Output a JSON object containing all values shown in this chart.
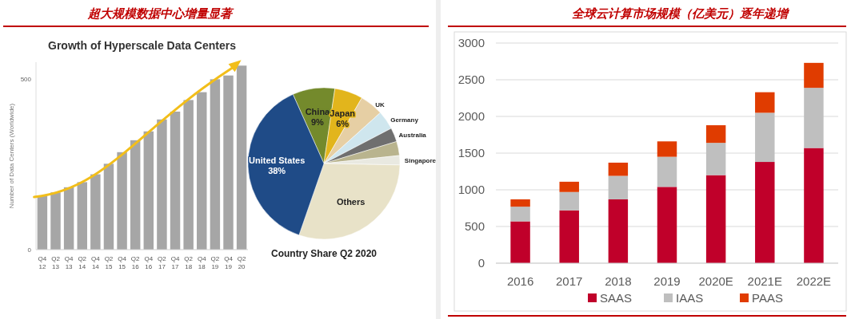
{
  "chart_data": [
    {
      "type": "bar",
      "title": "超大规模数据中心增量显著",
      "subtitle": "Growth of Hyperscale Data Centers",
      "ylabel": "Number of Data Centers (Worldwide)",
      "categories": [
        "Q4 12",
        "Q2 13",
        "Q4 13",
        "Q2 14",
        "Q4 14",
        "Q2 15",
        "Q4 15",
        "Q2 16",
        "Q4 16",
        "Q2 17",
        "Q4 17",
        "Q2 18",
        "Q4 18",
        "Q2 19",
        "Q4 19",
        "Q2 20"
      ],
      "values": [
        159,
        168,
        183,
        198,
        221,
        252,
        286,
        321,
        347,
        382,
        405,
        439,
        462,
        500,
        511,
        540
      ],
      "color": "#a6a6a6",
      "ylim": [
        0,
        550
      ],
      "yticks": [
        0,
        500
      ]
    },
    {
      "type": "pie",
      "title": "Country Share Q2 2020",
      "categories": [
        "China",
        "Japan",
        "UK",
        "Germany",
        "Australia",
        null,
        "Singapore",
        "Others",
        "United States"
      ],
      "values": [
        9,
        6,
        5,
        4,
        3,
        3,
        2,
        30,
        38
      ],
      "colors": [
        "#748a2c",
        "#e2b51c",
        "#e6cfa4",
        "#cfe6ee",
        "#6f6f6f",
        "#b9b48e",
        "#e9e9e1",
        "#e8e2c8",
        "#1f4b87"
      ],
      "value_labels": [
        "9%",
        "6%",
        null,
        null,
        null,
        null,
        null,
        null,
        "38%"
      ]
    },
    {
      "type": "bar",
      "title": "全球云计算市场规模（亿美元）逐年递增",
      "stacked": true,
      "categories": [
        "2016",
        "2017",
        "2018",
        "2019",
        "2020E",
        "2021E",
        "2022E"
      ],
      "series": [
        {
          "name": "SAAS",
          "color": "#c0002a",
          "values": [
            570,
            720,
            870,
            1040,
            1200,
            1380,
            1570
          ]
        },
        {
          "name": "IAAS",
          "color": "#bfbfbf",
          "values": [
            200,
            250,
            320,
            410,
            440,
            670,
            820
          ]
        },
        {
          "name": "PAAS",
          "color": "#e03c00",
          "values": [
            100,
            140,
            180,
            210,
            240,
            280,
            340
          ]
        }
      ],
      "ylim": [
        0,
        3000
      ],
      "yticks": [
        0,
        500,
        1000,
        1500,
        2000,
        2500,
        3000
      ],
      "grid": "y",
      "legend": "bottom"
    }
  ]
}
